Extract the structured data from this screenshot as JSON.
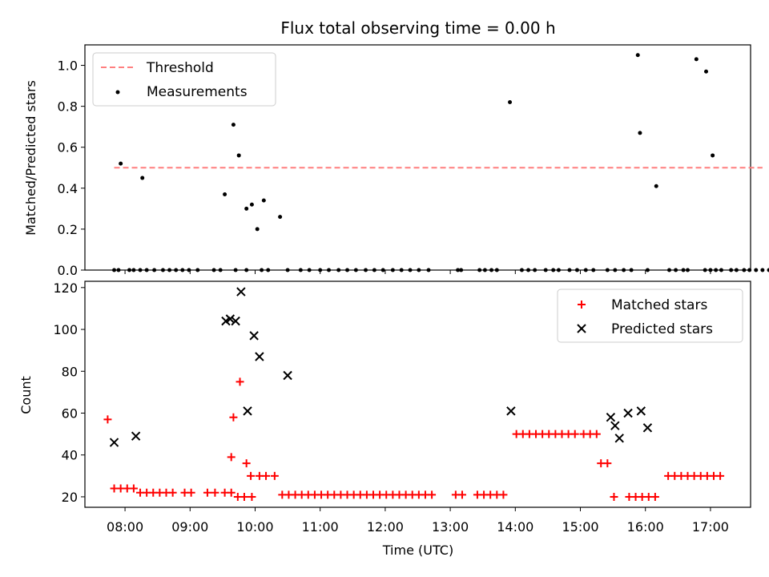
{
  "chart_data": {
    "title": "Flux total observing time = 0.00 h",
    "x_axis": {
      "label": "Time (UTC)",
      "range_minutes": [
        443,
        1057
      ],
      "tick_labels": [
        "08:00",
        "09:00",
        "10:00",
        "11:00",
        "12:00",
        "13:00",
        "14:00",
        "15:00",
        "16:00",
        "17:00"
      ],
      "tick_minutes": [
        480,
        540,
        600,
        660,
        720,
        780,
        840,
        900,
        960,
        1020
      ]
    },
    "panels": [
      {
        "type": "scatter",
        "ylabel": "Matched/Predicted stars",
        "ylim": [
          0,
          1.1
        ],
        "yticks": [
          0.0,
          0.2,
          0.4,
          0.6,
          0.8,
          1.0
        ],
        "ytick_labels": [
          "0.0",
          "0.2",
          "0.4",
          "0.6",
          "0.8",
          "1.0"
        ],
        "legend_position": "upper-left",
        "threshold": {
          "name": "Threshold",
          "value": 0.5,
          "x_start": 470,
          "x_end": 1068,
          "color": "#ff7f7f"
        },
        "series": [
          {
            "name": "Measurements",
            "color": "#000000",
            "x": [
              470,
              474,
              484,
              494,
              488,
              500,
              507,
              515,
              521,
              527,
              533,
              539,
              547,
              562,
              568,
              582,
              592,
              606,
              612,
              630,
              642,
              650,
              660,
              668,
              677,
              685,
              693,
              702,
              710,
              718,
              727,
              735,
              743,
              751,
              760,
              787,
              790,
              807,
              812,
              818,
              823,
              846,
              852,
              858,
              868,
              875,
              880,
              890,
              897,
              905,
              912,
              925,
              932,
              940,
              947,
              962,
              982,
              988,
              995,
              999,
              1015,
              1020,
              1025,
              1030,
              1039,
              1044,
              1051,
              1056,
              1062,
              1068,
              1074,
              476,
              496,
              572,
              580,
              585,
              592,
              597,
              602,
              608,
              623,
              835,
              953,
              955,
              970,
              1007,
              1016,
              1022
            ],
            "y": [
              0,
              0,
              0,
              0,
              0,
              0,
              0,
              0,
              0,
              0,
              0,
              0,
              0,
              0,
              0,
              0,
              0,
              0,
              0,
              0,
              0,
              0,
              0,
              0,
              0,
              0,
              0,
              0,
              0,
              0,
              0,
              0,
              0,
              0,
              0,
              0,
              0,
              0,
              0,
              0,
              0,
              0,
              0,
              0,
              0,
              0,
              0,
              0,
              0,
              0,
              0,
              0,
              0,
              0,
              0,
              0,
              0,
              0,
              0,
              0,
              0,
              0,
              0,
              0,
              0,
              0,
              0,
              0,
              0,
              0,
              0,
              0.52,
              0.45,
              0.37,
              0.71,
              0.56,
              0.3,
              0.32,
              0.2,
              0.34,
              0.26,
              0.82,
              1.05,
              0.67,
              0.41,
              1.03,
              0.97,
              0.56
            ]
          }
        ]
      },
      {
        "type": "scatter",
        "ylabel": "Count",
        "ylim": [
          15,
          123
        ],
        "yticks": [
          20,
          40,
          60,
          80,
          100,
          120
        ],
        "ytick_labels": [
          "20",
          "40",
          "60",
          "80",
          "100",
          "120"
        ],
        "legend_position": "upper-right",
        "series": [
          {
            "name": "Matched stars",
            "marker": "plus",
            "color": "#ff0000",
            "x": [
              470,
              476,
              482,
              488,
              494,
              500,
              506,
              512,
              518,
              524,
              535,
              541,
              556,
              563,
              572,
              578,
              584,
              590,
              596,
              604,
              610,
              618,
              625,
              631,
              637,
              643,
              649,
              655,
              661,
              667,
              673,
              679,
              685,
              691,
              697,
              703,
              709,
              715,
              721,
              727,
              733,
              739,
              745,
              751,
              757,
              763,
              785,
              791,
              805,
              811,
              817,
              823,
              829,
              841,
              847,
              853,
              859,
              865,
              871,
              877,
              883,
              889,
              895,
              903,
              909,
              915,
              919,
              925,
              931,
              945,
              951,
              957,
              963,
              969,
              981,
              987,
              993,
              999,
              1005,
              1011,
              1017,
              1023,
              1029,
              464,
              578,
              580,
              586,
              592,
              597
            ],
            "y": [
              24,
              24,
              24,
              24,
              22,
              22,
              22,
              22,
              22,
              22,
              22,
              22,
              22,
              22,
              22,
              22,
              20,
              20,
              30,
              30,
              30,
              30,
              21,
              21,
              21,
              21,
              21,
              21,
              21,
              21,
              21,
              21,
              21,
              21,
              21,
              21,
              21,
              21,
              21,
              21,
              21,
              21,
              21,
              21,
              21,
              21,
              21,
              21,
              21,
              21,
              21,
              21,
              21,
              50,
              50,
              50,
              50,
              50,
              50,
              50,
              50,
              50,
              50,
              50,
              50,
              50,
              36,
              36,
              20,
              20,
              20,
              20,
              20,
              20,
              30,
              30,
              30,
              30,
              30,
              30,
              30,
              30,
              30,
              57,
              39,
              58,
              75,
              36,
              20
            ]
          },
          {
            "name": "Predicted stars",
            "marker": "x",
            "color": "#000000",
            "x": [
              470,
              490,
              573,
              577,
              582,
              587,
              593,
              599,
              604,
              630,
              836,
              928,
              932,
              936,
              944,
              956,
              962
            ],
            "y": [
              46,
              49,
              104,
              105,
              104,
              118,
              61,
              97,
              87,
              78,
              61,
              58,
              54,
              48,
              60,
              61,
              53
            ]
          }
        ]
      }
    ]
  }
}
